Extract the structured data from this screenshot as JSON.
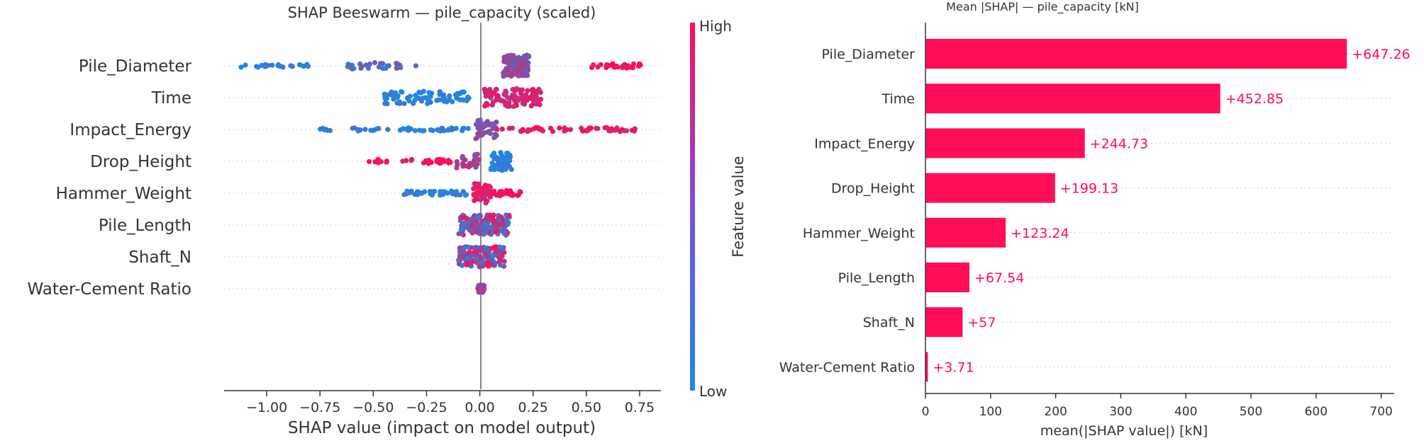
{
  "chart_data": [
    {
      "type": "scatter",
      "title": "SHAP Beeswarm — pile_capacity (scaled)",
      "xlabel": "SHAP value (impact on model output)",
      "ylabel": "",
      "xlim": [
        -1.2,
        0.85
      ],
      "xticks": [
        -1.0,
        -0.75,
        -0.5,
        -0.25,
        0.0,
        0.25,
        0.5,
        0.75
      ],
      "xtick_labels": [
        "−1.00",
        "−0.75",
        "−0.50",
        "−0.25",
        "0.00",
        "0.25",
        "0.50",
        "0.75"
      ],
      "categories": [
        "Pile_Diameter",
        "Time",
        "Impact_Energy",
        "Drop_Height",
        "Hammer_Weight",
        "Pile_Length",
        "Shaft_N",
        "Water-Cement Ratio"
      ],
      "grid": "horizontal dotted",
      "colorbar": {
        "label": "Feature value",
        "high_label": "High",
        "low_label": "Low",
        "low_color": "#1e88e5",
        "high_color": "#ff0d57"
      },
      "series": [
        {
          "feature": "Pile_Diameter",
          "clusters": [
            {
              "min": -1.12,
              "max": -0.78,
              "n": 24,
              "spread": 0.15,
              "feature_value": 0.0
            },
            {
              "min": -0.62,
              "max": -0.36,
              "n": 28,
              "spread": 0.3,
              "feature_value": 0.25
            },
            {
              "min": -0.3,
              "max": -0.3,
              "n": 1,
              "spread": 0.0,
              "feature_value": 0.25
            },
            {
              "min": 0.11,
              "max": 0.23,
              "n": 130,
              "spread": 1.0,
              "feature_value": 0.5
            },
            {
              "min": 0.52,
              "max": 0.76,
              "n": 30,
              "spread": 0.22,
              "feature_value": 1.0
            }
          ]
        },
        {
          "feature": "Time",
          "clusters": [
            {
              "min": -0.45,
              "max": -0.05,
              "n": 75,
              "spread": 0.6,
              "feature_value": 0.05
            },
            {
              "min": 0.02,
              "max": 0.29,
              "n": 105,
              "spread": 0.85,
              "feature_value": 0.8
            }
          ]
        },
        {
          "feature": "Impact_Energy",
          "clusters": [
            {
              "min": -0.75,
              "max": -0.05,
              "n": 55,
              "spread": 0.15,
              "feature_value": 0.05
            },
            {
              "min": -0.02,
              "max": 0.08,
              "n": 40,
              "spread": 0.9,
              "feature_value": 0.45
            },
            {
              "min": 0.08,
              "max": 0.74,
              "n": 55,
              "spread": 0.2,
              "feature_value": 0.85
            }
          ]
        },
        {
          "feature": "Drop_Height",
          "clusters": [
            {
              "min": -0.52,
              "max": -0.13,
              "n": 32,
              "spread": 0.2,
              "feature_value": 0.95
            },
            {
              "min": -0.12,
              "max": 0.0,
              "n": 25,
              "spread": 0.7,
              "feature_value": 0.6
            },
            {
              "min": 0.05,
              "max": 0.15,
              "n": 60,
              "spread": 0.9,
              "feature_value": 0.05
            }
          ]
        },
        {
          "feature": "Hammer_Weight",
          "clusters": [
            {
              "min": -0.37,
              "max": -0.05,
              "n": 40,
              "spread": 0.2,
              "feature_value": 0.05
            },
            {
              "min": -0.03,
              "max": 0.05,
              "n": 55,
              "spread": 0.95,
              "feature_value": 0.85
            },
            {
              "min": 0.05,
              "max": 0.2,
              "n": 30,
              "spread": 0.25,
              "feature_value": 1.0
            }
          ]
        },
        {
          "feature": "Pile_Length",
          "clusters": [
            {
              "min": -0.1,
              "max": 0.14,
              "n": 160,
              "spread": 0.95,
              "feature_value": "mixed"
            }
          ]
        },
        {
          "feature": "Shaft_N",
          "clusters": [
            {
              "min": -0.1,
              "max": 0.12,
              "n": 150,
              "spread": 0.95,
              "feature_value": "mixed"
            }
          ]
        },
        {
          "feature": "Water-Cement Ratio",
          "clusters": [
            {
              "min": -0.01,
              "max": 0.02,
              "n": 40,
              "spread": 0.35,
              "feature_value": 0.6
            }
          ]
        }
      ]
    },
    {
      "type": "bar",
      "orientation": "horizontal",
      "title": "Mean |SHAP| — pile_capacity [kN]",
      "xlabel": "mean(|SHAP value|) [kN]",
      "ylabel": "",
      "xlim": [
        0,
        720
      ],
      "xticks": [
        0,
        100,
        200,
        300,
        400,
        500,
        600,
        700
      ],
      "grid": "horizontal dotted",
      "bar_color": "#ff0d57",
      "categories": [
        "Pile_Diameter",
        "Time",
        "Impact_Energy",
        "Drop_Height",
        "Hammer_Weight",
        "Pile_Length",
        "Shaft_N",
        "Water-Cement Ratio"
      ],
      "values": [
        647.26,
        452.85,
        244.73,
        199.13,
        123.24,
        67.54,
        57,
        3.71
      ],
      "value_labels": [
        "+647.26",
        "+452.85",
        "+244.73",
        "+199.13",
        "+123.24",
        "+67.54",
        "+57",
        "+3.71"
      ]
    }
  ]
}
